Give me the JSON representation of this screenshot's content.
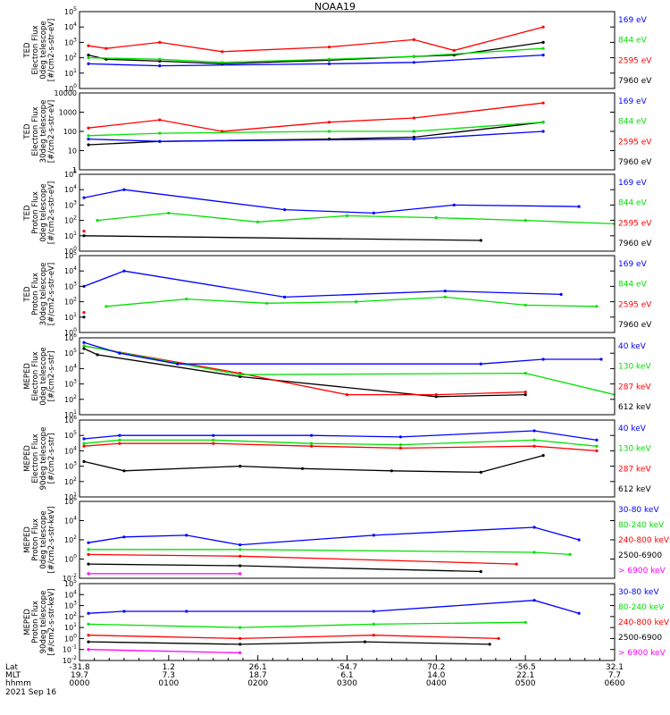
{
  "title": "NOAA19",
  "date_label": "2021 Sep 16",
  "footer": {
    "row_labels": [
      "Lat",
      "MLT",
      "hhmm"
    ],
    "lat": [
      "-31.8",
      "1.2",
      "26.1",
      "-54.7",
      "70.2",
      "-56.5",
      "32.1"
    ],
    "mlt": [
      "19.7",
      "7.3",
      "18.7",
      "6.1",
      "14.0",
      "22.1",
      "7.7"
    ],
    "hhmm": [
      "0000",
      "0100",
      "0200",
      "0300",
      "0400",
      "0500",
      "0600"
    ]
  },
  "colors": {
    "black": "#000000",
    "red": "#ff0000",
    "green": "#00e000",
    "blue": "#0000ff",
    "magenta": "#ff00ff"
  },
  "chart_data": [
    {
      "type": "line",
      "ylabel": [
        "TED",
        "Electron Flux",
        "0deg telescope",
        "[#/cm2-s-str-eV]"
      ],
      "yscale": "log",
      "ylim": [
        1,
        100000
      ],
      "ytick_labels": [
        "10^0",
        "10^1",
        "10^2",
        "10^3",
        "10^4",
        "10^5"
      ],
      "series": [
        {
          "name": "7960 eV",
          "color": "black",
          "values": [
            [
              0.1,
              150
            ],
            [
              0.3,
              80
            ],
            [
              0.9,
              60
            ],
            [
              1.6,
              40
            ],
            [
              2.8,
              70
            ],
            [
              3.75,
              120
            ],
            [
              4.2,
              150
            ],
            [
              5.2,
              1000
            ]
          ]
        },
        {
          "name": "2595 eV",
          "color": "red",
          "values": [
            [
              0.1,
              600
            ],
            [
              0.3,
              400
            ],
            [
              0.9,
              1000
            ],
            [
              1.6,
              250
            ],
            [
              2.8,
              500
            ],
            [
              3.75,
              1500
            ],
            [
              4.2,
              300
            ],
            [
              5.2,
              10000
            ]
          ]
        },
        {
          "name": "844 eV",
          "color": "green",
          "values": [
            [
              0.1,
              100
            ],
            [
              0.9,
              80
            ],
            [
              1.6,
              50
            ],
            [
              2.8,
              80
            ],
            [
              3.75,
              120
            ],
            [
              5.2,
              400
            ]
          ]
        },
        {
          "name": "169 eV",
          "color": "blue",
          "values": [
            [
              0.1,
              40
            ],
            [
              0.9,
              30
            ],
            [
              2.8,
              40
            ],
            [
              3.75,
              50
            ],
            [
              5.2,
              150
            ]
          ]
        }
      ]
    },
    {
      "type": "line",
      "ylabel": [
        "TED",
        "Electron Flux",
        "30deg telescope",
        "[#/cm2-s-str-eV]"
      ],
      "yscale": "log",
      "ylim": [
        1,
        10000
      ],
      "ytick_labels": [
        "1",
        "10",
        "100",
        "1000",
        "10000"
      ],
      "series": [
        {
          "name": "7960 eV",
          "color": "black",
          "values": [
            [
              0.1,
              20
            ],
            [
              0.9,
              30
            ],
            [
              2.8,
              40
            ],
            [
              3.75,
              50
            ],
            [
              5.2,
              300
            ]
          ]
        },
        {
          "name": "2595 eV",
          "color": "red",
          "values": [
            [
              0.1,
              150
            ],
            [
              0.9,
              400
            ],
            [
              1.6,
              100
            ],
            [
              2.8,
              300
            ],
            [
              3.75,
              500
            ],
            [
              5.2,
              3000
            ]
          ]
        },
        {
          "name": "844 eV",
          "color": "green",
          "values": [
            [
              0.1,
              60
            ],
            [
              0.9,
              80
            ],
            [
              2.8,
              100
            ],
            [
              3.75,
              100
            ],
            [
              5.2,
              300
            ]
          ]
        },
        {
          "name": "169 eV",
          "color": "blue",
          "values": [
            [
              0.1,
              40
            ],
            [
              0.9,
              30
            ],
            [
              3.75,
              40
            ],
            [
              5.2,
              100
            ]
          ]
        }
      ]
    },
    {
      "type": "line",
      "ylabel": [
        "TED",
        "Proton Flux",
        "0deg telescope",
        "[#/cm2-s-str-eV]"
      ],
      "yscale": "log",
      "ylim": [
        1,
        100000
      ],
      "ytick_labels": [
        "10^0",
        "10^1",
        "10^2",
        "10^3",
        "10^4",
        "10^5"
      ],
      "series": [
        {
          "name": "7960 eV",
          "color": "black",
          "values": [
            [
              0.05,
              10
            ],
            [
              4.5,
              5
            ]
          ]
        },
        {
          "name": "2595 eV",
          "color": "red",
          "values": [
            [
              0.05,
              20
            ]
          ]
        },
        {
          "name": "844 eV",
          "color": "green",
          "values": [
            [
              0.2,
              100
            ],
            [
              1.0,
              300
            ],
            [
              2.0,
              80
            ],
            [
              3.0,
              200
            ],
            [
              4.0,
              150
            ],
            [
              5.0,
              100
            ],
            [
              6.0,
              60
            ]
          ]
        },
        {
          "name": "169 eV",
          "color": "blue",
          "values": [
            [
              0.05,
              3000
            ],
            [
              0.5,
              10000
            ],
            [
              2.3,
              500
            ],
            [
              3.3,
              300
            ],
            [
              4.2,
              1000
            ],
            [
              5.6,
              800
            ]
          ]
        }
      ]
    },
    {
      "type": "line",
      "ylabel": [
        "TED",
        "Proton Flux",
        "30deg telescope",
        "[#/cm2-s-str-eV]"
      ],
      "yscale": "log",
      "ylim": [
        1,
        100000
      ],
      "ytick_labels": [
        "10^0",
        "10^1",
        "10^2",
        "10^3",
        "10^4",
        "10^5"
      ],
      "series": [
        {
          "name": "7960 eV",
          "color": "black",
          "values": [
            [
              0.05,
              10
            ]
          ]
        },
        {
          "name": "2595 eV",
          "color": "red",
          "values": [
            [
              0.05,
              20
            ]
          ]
        },
        {
          "name": "844 eV",
          "color": "green",
          "values": [
            [
              0.3,
              50
            ],
            [
              1.2,
              150
            ],
            [
              2.1,
              80
            ],
            [
              3.1,
              100
            ],
            [
              4.1,
              200
            ],
            [
              5.0,
              60
            ],
            [
              5.8,
              50
            ]
          ]
        },
        {
          "name": "169 eV",
          "color": "blue",
          "values": [
            [
              0.05,
              1000
            ],
            [
              0.5,
              10000
            ],
            [
              2.3,
              200
            ],
            [
              4.1,
              500
            ],
            [
              5.4,
              300
            ]
          ]
        }
      ]
    },
    {
      "type": "line",
      "ylabel": [
        "MEPED",
        "Electron Flux",
        "0deg telescope",
        "[#/cm2-s-str]"
      ],
      "yscale": "log",
      "ylim": [
        10,
        1000000
      ],
      "ytick_labels": [
        "10^1",
        "10^2",
        "10^3",
        "10^4",
        "10^5",
        "10^6"
      ],
      "series": [
        {
          "name": "612 keV",
          "color": "black",
          "values": [
            [
              0.05,
              200000
            ],
            [
              0.2,
              80000
            ],
            [
              1.8,
              3000
            ],
            [
              4.0,
              150
            ],
            [
              5.0,
              200
            ]
          ]
        },
        {
          "name": "287 keV",
          "color": "red",
          "values": [
            [
              0.05,
              300000
            ],
            [
              1.8,
              5000
            ],
            [
              3.0,
              200
            ],
            [
              4.0,
              200
            ],
            [
              5.0,
              300
            ]
          ]
        },
        {
          "name": "130 keV",
          "color": "green",
          "values": [
            [
              0.05,
              300000
            ],
            [
              1.8,
              4000
            ],
            [
              5.0,
              5000
            ],
            [
              6.0,
              200
            ]
          ]
        },
        {
          "name": "40 keV",
          "color": "blue",
          "values": [
            [
              0.05,
              500000
            ],
            [
              0.45,
              100000
            ],
            [
              1.1,
              20000
            ],
            [
              4.5,
              20000
            ],
            [
              5.2,
              40000
            ],
            [
              5.85,
              40000
            ]
          ]
        }
      ]
    },
    {
      "type": "line",
      "ylabel": [
        "MEPED",
        "Electron Flux",
        "90deg telescope",
        "[#/cm2-s-str]"
      ],
      "yscale": "log",
      "ylim": [
        10,
        1000000
      ],
      "ytick_labels": [
        "10^1",
        "10^2",
        "10^3",
        "10^4",
        "10^5",
        "10^6"
      ],
      "series": [
        {
          "name": "612 keV",
          "color": "black",
          "values": [
            [
              0.05,
              2000
            ],
            [
              0.5,
              500
            ],
            [
              1.8,
              1000
            ],
            [
              2.5,
              700
            ],
            [
              3.5,
              500
            ],
            [
              4.5,
              400
            ],
            [
              5.2,
              5000
            ]
          ]
        },
        {
          "name": "287 keV",
          "color": "red",
          "values": [
            [
              0.05,
              20000
            ],
            [
              0.45,
              30000
            ],
            [
              1.5,
              30000
            ],
            [
              2.6,
              20000
            ],
            [
              3.6,
              15000
            ],
            [
              5.1,
              20000
            ],
            [
              5.8,
              10000
            ]
          ]
        },
        {
          "name": "130 keV",
          "color": "green",
          "values": [
            [
              0.05,
              30000
            ],
            [
              0.45,
              50000
            ],
            [
              1.5,
              50000
            ],
            [
              2.6,
              30000
            ],
            [
              3.6,
              25000
            ],
            [
              5.1,
              50000
            ],
            [
              5.8,
              20000
            ]
          ]
        },
        {
          "name": "40 keV",
          "color": "blue",
          "values": [
            [
              0.05,
              60000
            ],
            [
              0.45,
              100000
            ],
            [
              1.5,
              100000
            ],
            [
              2.6,
              100000
            ],
            [
              3.6,
              80000
            ],
            [
              5.1,
              200000
            ],
            [
              5.8,
              50000
            ]
          ]
        }
      ]
    },
    {
      "type": "line",
      "ylabel": [
        "MEPED",
        "Proton Flux",
        "0deg telescope",
        "[#/cm2-s-str-keV]"
      ],
      "yscale": "log",
      "ylim": [
        0.01,
        1000000
      ],
      "ytick_labels": [
        "10^-2",
        "10^0",
        "10^2",
        "10^4",
        "10^6"
      ],
      "series": [
        {
          "name": "> 6900 keV",
          "color": "magenta",
          "values": [
            [
              0.1,
              0.03
            ],
            [
              1.8,
              0.03
            ]
          ]
        },
        {
          "name": "2500-6900",
          "color": "black",
          "values": [
            [
              0.1,
              0.3
            ],
            [
              1.8,
              0.2
            ],
            [
              4.5,
              0.05
            ]
          ]
        },
        {
          "name": "240-800 keV",
          "color": "red",
          "values": [
            [
              0.1,
              3
            ],
            [
              1.8,
              2
            ],
            [
              4.9,
              0.3
            ]
          ]
        },
        {
          "name": "80-240 keV",
          "color": "green",
          "values": [
            [
              0.1,
              10
            ],
            [
              1.8,
              10
            ],
            [
              5.1,
              5
            ],
            [
              5.5,
              3
            ]
          ]
        },
        {
          "name": "30-80 keV",
          "color": "blue",
          "values": [
            [
              0.1,
              50
            ],
            [
              0.5,
              200
            ],
            [
              1.2,
              300
            ],
            [
              1.8,
              30
            ],
            [
              3.3,
              300
            ],
            [
              5.1,
              2000
            ],
            [
              5.6,
              100
            ]
          ]
        }
      ]
    },
    {
      "type": "line",
      "ylabel": [
        "MEPED",
        "Proton Flux",
        "90deg telescope",
        "[#/cm2-s-str-keV]"
      ],
      "yscale": "log",
      "ylim": [
        0.01,
        100000
      ],
      "ytick_labels": [
        "10^-2",
        "10^-1",
        "10^0",
        "10^1",
        "10^2",
        "10^3",
        "10^4",
        "10^5"
      ],
      "series": [
        {
          "name": "> 6900 keV",
          "color": "magenta",
          "values": [
            [
              0.1,
              0.1
            ],
            [
              1.8,
              0.05
            ]
          ]
        },
        {
          "name": "2500-6900",
          "color": "black",
          "values": [
            [
              0.1,
              0.5
            ],
            [
              1.8,
              0.3
            ],
            [
              3.2,
              0.5
            ],
            [
              4.6,
              0.3
            ]
          ]
        },
        {
          "name": "240-800 keV",
          "color": "red",
          "values": [
            [
              0.1,
              2
            ],
            [
              1.8,
              1
            ],
            [
              3.3,
              2
            ],
            [
              4.7,
              1
            ]
          ]
        },
        {
          "name": "80-240 keV",
          "color": "green",
          "values": [
            [
              0.1,
              20
            ],
            [
              1.8,
              10
            ],
            [
              3.3,
              20
            ],
            [
              5.0,
              30
            ]
          ]
        },
        {
          "name": "30-80 keV",
          "color": "blue",
          "values": [
            [
              0.1,
              200
            ],
            [
              0.5,
              300
            ],
            [
              1.2,
              300
            ],
            [
              3.3,
              300
            ],
            [
              5.1,
              3000
            ],
            [
              5.6,
              200
            ]
          ]
        }
      ]
    }
  ]
}
